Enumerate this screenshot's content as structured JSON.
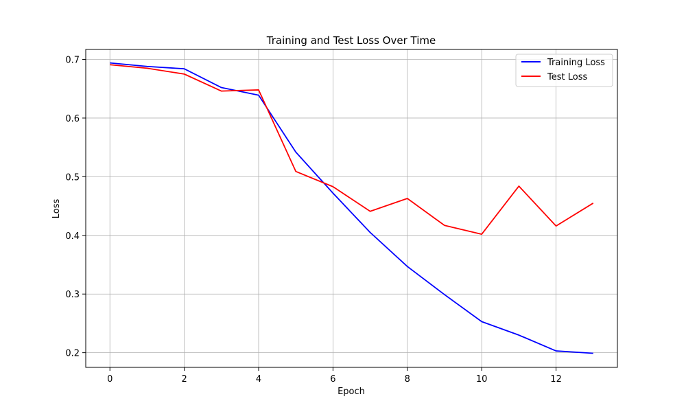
{
  "chart_data": {
    "type": "line",
    "title": "Training and Test Loss Over Time",
    "xlabel": "Epoch",
    "ylabel": "Loss",
    "x": [
      0,
      1,
      2,
      3,
      4,
      5,
      6,
      7,
      8,
      9,
      10,
      11,
      12,
      13
    ],
    "xlim": [
      -0.65,
      13.65
    ],
    "ylim": [
      0.175,
      0.717
    ],
    "xticks": [
      0,
      2,
      4,
      6,
      8,
      10,
      12
    ],
    "yticks": [
      0.2,
      0.3,
      0.4,
      0.5,
      0.6,
      0.7
    ],
    "grid": true,
    "legend_position": "top-right",
    "series": [
      {
        "name": "Training Loss",
        "color": "#0000ff",
        "values": [
          0.694,
          0.688,
          0.684,
          0.652,
          0.639,
          0.542,
          0.472,
          0.405,
          0.347,
          0.299,
          0.253,
          0.23,
          0.203,
          0.199
        ]
      },
      {
        "name": "Test Loss",
        "color": "#ff0000",
        "values": [
          0.691,
          0.685,
          0.675,
          0.646,
          0.648,
          0.509,
          0.483,
          0.441,
          0.463,
          0.417,
          0.402,
          0.484,
          0.416,
          0.455
        ]
      }
    ]
  }
}
